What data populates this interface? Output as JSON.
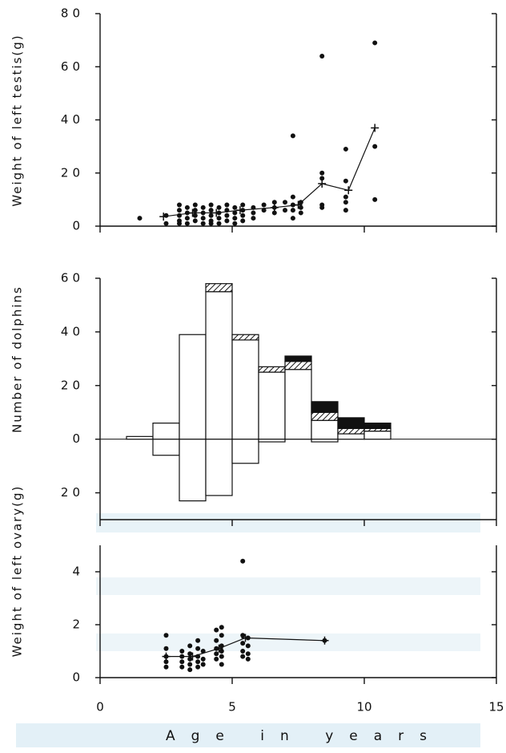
{
  "chart_data": [
    {
      "type": "scatter",
      "ylabel": "Weight of left testis(g)",
      "xlim": [
        0,
        15
      ],
      "ylim": [
        0,
        80
      ],
      "yticks": [
        0,
        20,
        40,
        60,
        80
      ],
      "series": [
        {
          "color": "#111111",
          "x": [
            1.5,
            2.5,
            2.5,
            3,
            3,
            3,
            3,
            3,
            3.3,
            3.3,
            3.3,
            3.3,
            3.6,
            3.6,
            3.6,
            3.6,
            3.9,
            3.9,
            3.9,
            3.9,
            4.2,
            4.2,
            4.2,
            4.2,
            4.2,
            4.5,
            4.5,
            4.5,
            4.5,
            4.8,
            4.8,
            4.8,
            4.8,
            5.1,
            5.1,
            5.1,
            5.1,
            5.4,
            5.4,
            5.4,
            5.4,
            5.8,
            5.8,
            5.8,
            6.2,
            6.2,
            6.6,
            6.6,
            6.6,
            7,
            7,
            7.3,
            7.3,
            7.3,
            7.3,
            7.3,
            7.6,
            7.6,
            7.6,
            8.4,
            8.4,
            8.4,
            8.4,
            8.4,
            9.3,
            9.3,
            9.3,
            9.3,
            9.3,
            10.4,
            10.4,
            10.4
          ],
          "values": [
            3,
            4,
            1,
            8,
            6,
            4,
            2,
            1,
            7,
            5,
            3,
            1,
            8,
            6,
            4,
            2,
            7,
            5,
            3,
            1,
            8,
            6,
            4,
            2,
            1,
            7,
            5,
            3,
            1,
            8,
            6,
            4,
            2,
            7,
            5,
            3,
            1,
            8,
            6,
            4,
            2,
            7,
            5,
            3,
            8,
            6,
            9,
            7,
            5,
            9,
            6,
            34,
            11,
            8,
            6,
            3,
            9,
            7,
            5,
            64,
            20,
            18,
            8,
            7,
            29,
            17,
            11,
            9,
            6,
            69,
            30,
            10
          ]
        },
        {
          "color": "#111111",
          "line": true,
          "x": [
            2.4,
            3.5,
            4.4,
            5.3,
            6.6,
            7.5,
            8.4,
            9.4,
            10.4
          ],
          "values": [
            3.6,
            5,
            5,
            6,
            7,
            8,
            16,
            13.5,
            37
          ]
        }
      ]
    },
    {
      "type": "histogram",
      "ylabel": "Number of dolphins",
      "xlim": [
        0,
        15
      ],
      "ylim": [
        -30,
        60
      ],
      "yticks": [
        60,
        40,
        20,
        0,
        {
          "value": -20,
          "label": "20"
        }
      ],
      "bins": [
        1,
        2,
        3,
        4,
        5,
        6,
        7,
        8,
        9,
        10,
        11
      ],
      "series": [
        {
          "color": "#ffffff",
          "values": [
            1,
            6,
            39,
            55,
            37,
            25,
            26,
            7,
            2,
            3
          ]
        },
        {
          "color": "#ffffff",
          "hatch": true,
          "values": [
            0,
            0,
            0,
            3,
            2,
            2,
            3,
            3,
            2,
            1
          ]
        },
        {
          "color": "#111111",
          "values": [
            0,
            0,
            0,
            0,
            0,
            0,
            2,
            4,
            4,
            2
          ]
        },
        {
          "color": "#ffffff",
          "values": [
            0,
            -6,
            -23,
            -21,
            -9,
            -1,
            0,
            -1,
            0,
            0
          ]
        }
      ]
    },
    {
      "type": "scatter",
      "ylabel": "Weight of left ovary(g)",
      "xlabel": "Age in years",
      "xlim": [
        0,
        15
      ],
      "ylim": [
        0,
        5
      ],
      "yticks": [
        0,
        2,
        4
      ],
      "xticks": [
        0,
        5,
        10,
        15
      ],
      "series": [
        {
          "color": "#111111",
          "x": [
            2.5,
            2.5,
            2.5,
            2.5,
            2.5,
            3.1,
            3.1,
            3.1,
            3.1,
            3.4,
            3.4,
            3.4,
            3.4,
            3.4,
            3.7,
            3.7,
            3.7,
            3.7,
            3.7,
            3.9,
            3.9,
            3.9,
            4.4,
            4.4,
            4.4,
            4.4,
            4.4,
            4.6,
            4.6,
            4.6,
            4.6,
            4.6,
            4.6,
            5.4,
            5.4,
            5.4,
            5.4,
            5.4,
            5.6,
            5.6,
            5.6,
            5.6,
            8.5
          ],
          "values": [
            1.6,
            1.1,
            0.8,
            0.6,
            0.4,
            1.0,
            0.8,
            0.6,
            0.4,
            1.2,
            0.9,
            0.7,
            0.5,
            0.3,
            1.4,
            1.1,
            0.8,
            0.6,
            0.4,
            1.0,
            0.7,
            0.5,
            1.8,
            1.4,
            1.1,
            0.9,
            0.7,
            1.9,
            1.6,
            1.2,
            1.0,
            0.8,
            0.5,
            4.4,
            1.6,
            1.3,
            1.0,
            0.8,
            1.5,
            1.2,
            0.9,
            0.7,
            1.4
          ]
        },
        {
          "color": "#111111",
          "line": true,
          "x": [
            2.5,
            3.5,
            4.5,
            5.5,
            8.5
          ],
          "values": [
            0.8,
            0.8,
            1.1,
            1.5,
            1.4
          ]
        }
      ]
    }
  ]
}
